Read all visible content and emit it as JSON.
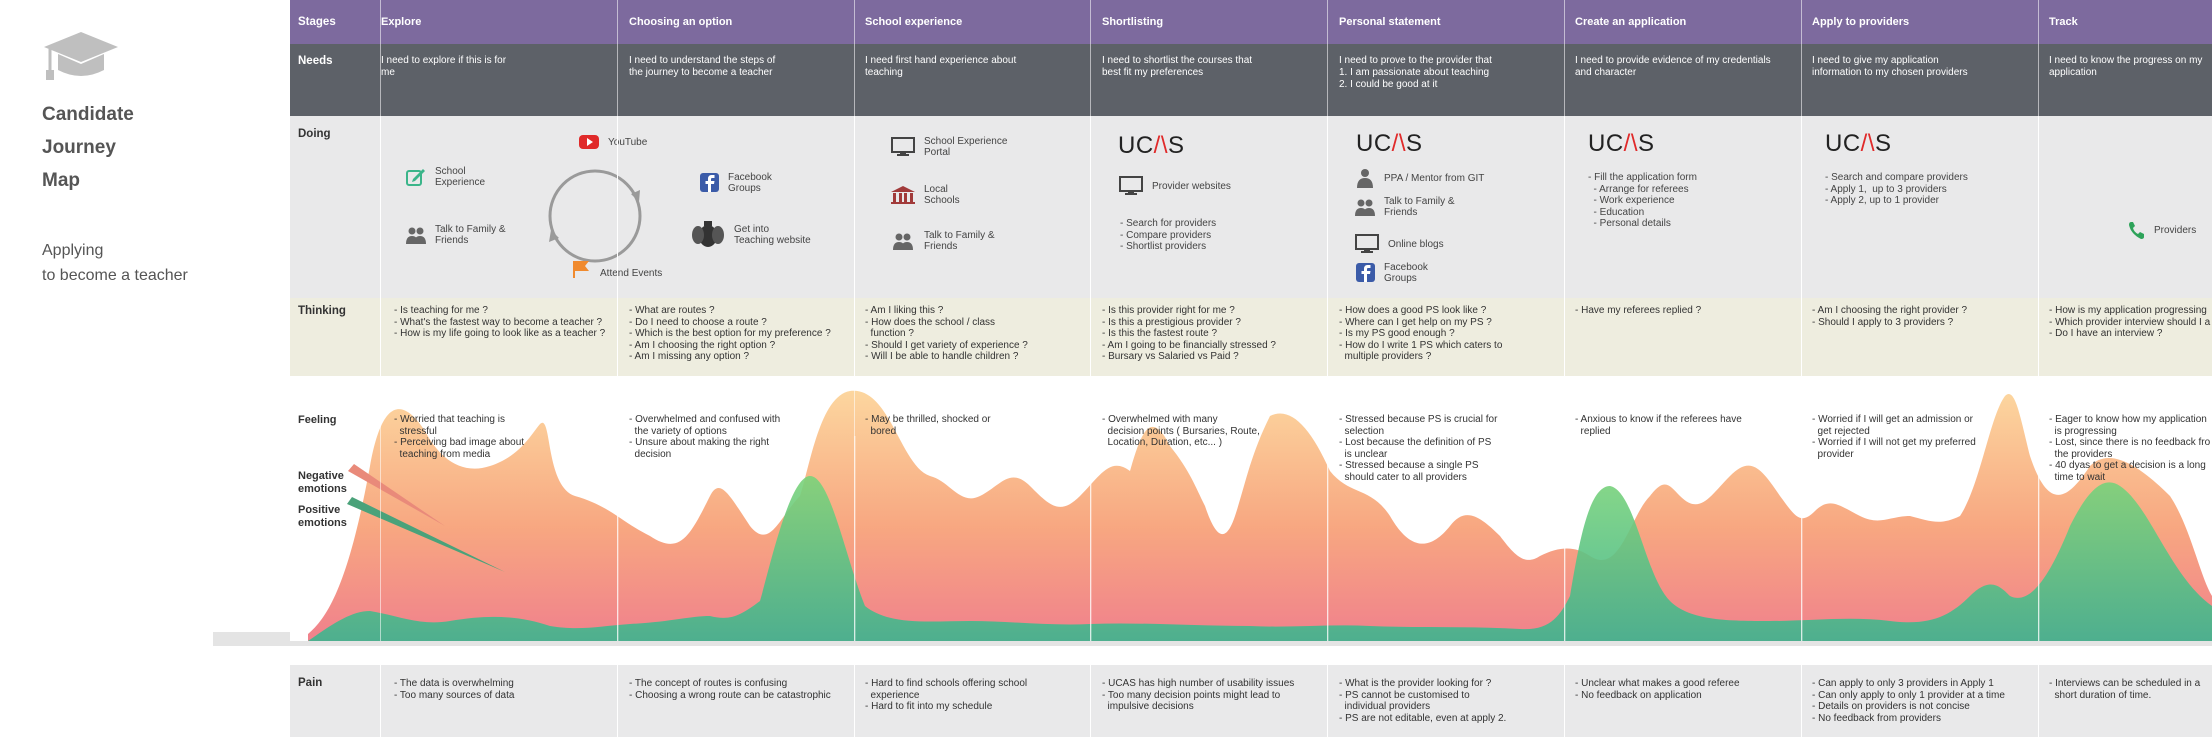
{
  "sidebar": {
    "title_lines": [
      "Candidate",
      "Journey",
      "Map"
    ],
    "subtitle_lines": [
      "Applying",
      "to become a teacher"
    ],
    "logo_icon": "graduation-cap-icon"
  },
  "row_labels": {
    "stages": "Stages",
    "needs": "Needs",
    "doing": "Doing",
    "thinking": "Thinking",
    "feeling": "Feeling",
    "pain": "Pain",
    "negative": "Negative\nemotions",
    "positive": "Positive\nemotions"
  },
  "colors": {
    "stages": "#7d6a9e",
    "needs": "#5d6168",
    "doing": "#e9e9ea",
    "thinking": "#eeeddf",
    "negative": "#f4a57e",
    "positive": "#3cb98a",
    "ucas_red": "#e02a2a"
  },
  "stages": [
    {
      "name": "Explore",
      "need": "I need to explore if this is for\nme",
      "thinking": "- Is teaching for me ?\n- What's the fastest way to become a teacher ?\n- How is my life going to look like as a teacher ?",
      "feeling": "- Worried that teaching is\n  stressful\n- Perceiving bad image about\n  teaching from media",
      "pain": "- The data is overwhelming\n- Too many sources of data"
    },
    {
      "name": "Choosing an option",
      "need": "I need to understand the steps of\nthe journey to become a teacher",
      "thinking": "- What are routes ?\n- Do I need to choose a route ?\n- Which is the best option for my preference ?\n- Am I choosing the right option ?\n- Am I missing any option ?",
      "feeling": "- Overwhelmed and confused with\n  the variety of options\n- Unsure about making the right\n  decision",
      "pain": "- The concept of routes is confusing\n- Choosing a wrong route can be catastrophic"
    },
    {
      "name": "School experience",
      "need": "I need first hand experience about\nteaching",
      "thinking": "- Am I liking this ?\n- How does the school / class\n  function ?\n- Should I get variety of experience ?\n- Will I be able to handle children ?",
      "feeling": "- May be thrilled, shocked or\n  bored",
      "pain": "- Hard to find schools offering school\n  experience\n- Hard to fit into my schedule"
    },
    {
      "name": "Shortlisting",
      "need": "I need to shortlist the courses that\nbest fit my preferences",
      "thinking": "- Is this provider right for me ?\n- Is this a prestigious provider ?\n- Is this the fastest route ?\n- Am I going to be financially stressed ?\n- Bursary vs Salaried vs Paid ?",
      "feeling": "- Overwhelmed with many\n  decision points ( Bursaries, Route,\n  Location, Duration, etc... )",
      "pain": "- UCAS has high number of usability issues\n- Too many decision points might lead to\n  impulsive decisions"
    },
    {
      "name": "Personal  statement",
      "need": "I need to prove to the provider that\n1. I am passionate about teaching\n2. I could be good at it",
      "thinking": "- How does a good PS look like ?\n- Where can I get help on my PS ?\n- Is my PS good enough ?\n- How do I write 1 PS which caters to\n  multiple providers ?",
      "feeling": "- Stressed because PS is crucial for\n  selection\n- Lost because the definition of PS\n  is unclear\n- Stressed because a single PS\n  should cater to all providers",
      "pain": "- What is the provider looking for ?\n- PS cannot be customised to\n  individual providers\n- PS are not editable, even at apply 2."
    },
    {
      "name": "Create an application",
      "need": "I need to provide evidence of my credentials\nand character",
      "thinking": "- Have my referees replied ?",
      "feeling": "- Anxious to know if the referees have\n  replied",
      "pain": "- Unclear what makes a good referee\n- No feedback on application"
    },
    {
      "name": "Apply to providers",
      "need": "I need to give my application\ninformation to my chosen providers",
      "thinking": "- Am I choosing the right provider ?\n- Should I apply to 3 providers ?",
      "feeling": "- Worried if I will get an admission or\n  get rejected\n- Worried if I will not get my preferred\n  provider",
      "pain": "- Can apply to only 3 providers in Apply 1\n- Can only apply to only 1 provider at a time\n- Details on providers is not concise\n- No feedback from providers"
    },
    {
      "name": "Track",
      "need": "I need to know the progress on my\napplication",
      "thinking": "- How is my application progressing\n- Which provider interview should I a\n- Do I have an interview ?",
      "feeling": "- Eager to know how my application\n  is progressing\n- Lost, since there is no feedback fro\n  the providers\n- 40 dyas to get a decision is a long\n  time to wait",
      "pain": "- Interviews can be scheduled in a\n  short duration of time."
    }
  ],
  "doing": {
    "explore": {
      "school_experience": "School\nExperience",
      "talk_family": "Talk to Family &\nFriends",
      "youtube": "YouTube",
      "facebook": "Facebook\nGroups",
      "get_into": "Get into\nTeaching website",
      "attend": "Attend Events"
    },
    "school": {
      "portal": "School Experience\nPortal",
      "local": "Local\nSchools",
      "talk": "Talk to Family &\nFriends"
    },
    "shortlisting": {
      "ucas": "UCAS",
      "provider_websites": "Provider websites",
      "list": "- Search for providers\n- Compare providers\n- Shortlist providers"
    },
    "personal": {
      "ucas": "UCAS",
      "ppa": "PPA / Mentor from GIT",
      "talk": "Talk to Family &\nFriends",
      "blogs": "Online blogs",
      "facebook": "Facebook\nGroups"
    },
    "create": {
      "ucas": "UCAS",
      "list": "- Fill the application form\n  - Arrange for referees\n  - Work experience\n  - Education\n  - Personal details"
    },
    "apply": {
      "ucas": "UCAS",
      "list": "- Search and compare providers\n- Apply 1,  up to 3 providers\n- Apply 2, up to 1 provider"
    },
    "track": {
      "providers": "Providers"
    }
  }
}
